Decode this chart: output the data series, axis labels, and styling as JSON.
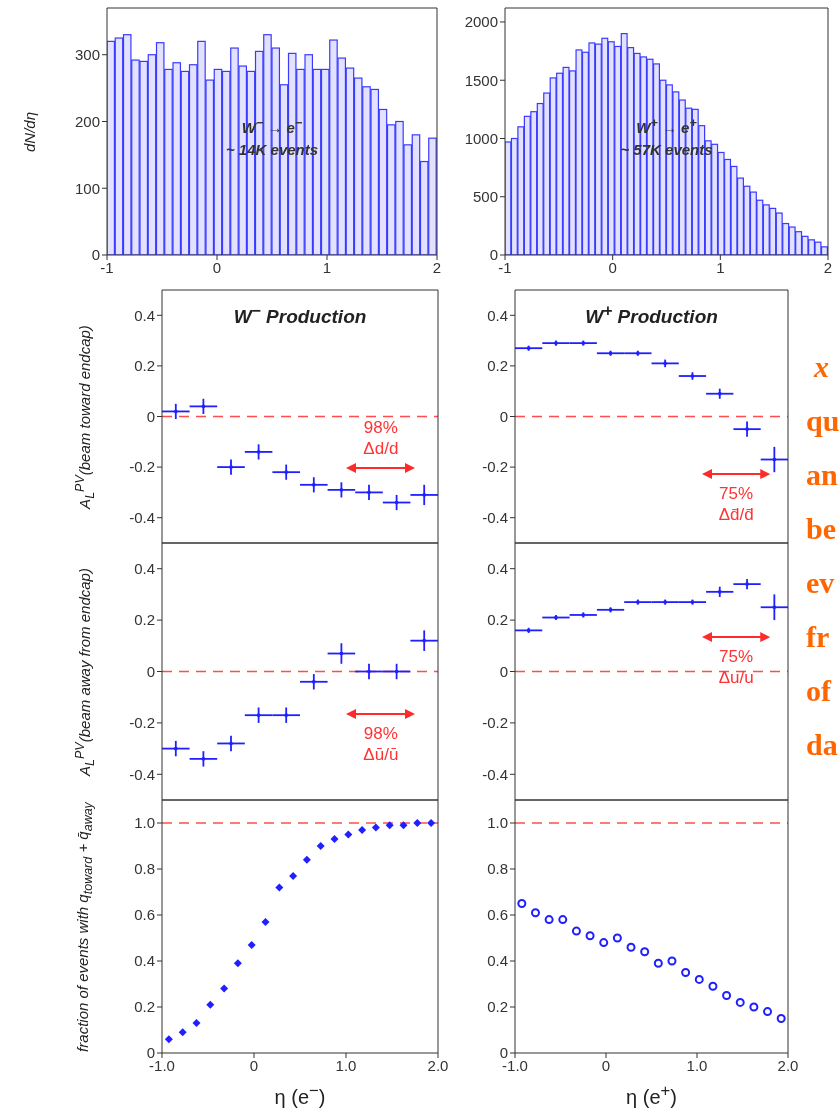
{
  "chart_data": [
    {
      "type": "histogram",
      "ylabel": "dN/dη",
      "annotations": [
        "W$^{−}$ → e$^{−}$",
        "~ 14K events"
      ],
      "color": "#3a3aff",
      "bins": [
        -1,
        -0.925,
        -0.85,
        -0.775,
        -0.7,
        -0.625,
        -0.55,
        -0.475,
        -0.4,
        -0.325,
        -0.25,
        -0.175,
        -0.1,
        -0.025,
        0.05,
        0.125,
        0.2,
        0.275,
        0.35,
        0.425,
        0.5,
        0.575,
        0.65,
        0.725,
        0.8,
        0.875,
        0.95,
        1.025,
        1.1,
        1.175,
        1.25,
        1.325,
        1.4,
        1.475,
        1.55,
        1.625,
        1.7,
        1.775,
        1.85,
        1.925,
        2
      ],
      "values": [
        320,
        325,
        330,
        292,
        290,
        300,
        318,
        278,
        288,
        275,
        285,
        320,
        262,
        278,
        275,
        310,
        283,
        275,
        305,
        330,
        310,
        255,
        302,
        278,
        300,
        278,
        278,
        322,
        295,
        280,
        265,
        252,
        248,
        218,
        195,
        200,
        165,
        180,
        140,
        175
      ],
      "xlim": [
        -1,
        2
      ],
      "xticks": [
        -1,
        0,
        1,
        2
      ],
      "ylim": [
        0,
        370
      ],
      "yticks": [
        0,
        100,
        200,
        300
      ]
    },
    {
      "type": "histogram",
      "annotations": [
        "W$^{+}$ → e$^{+}$",
        "~ 57K events"
      ],
      "color": "#3a3aff",
      "bins": [
        -1,
        -0.94,
        -0.88,
        -0.82,
        -0.76,
        -0.7,
        -0.64,
        -0.58,
        -0.52,
        -0.46,
        -0.4,
        -0.34,
        -0.28,
        -0.22,
        -0.16,
        -0.1,
        -0.04,
        0.02,
        0.08,
        0.14,
        0.2,
        0.26,
        0.32,
        0.38,
        0.44,
        0.5,
        0.56,
        0.62,
        0.68,
        0.74,
        0.8,
        0.86,
        0.92,
        0.98,
        1.04,
        1.1,
        1.16,
        1.22,
        1.28,
        1.34,
        1.4,
        1.46,
        1.52,
        1.58,
        1.64,
        1.7,
        1.76,
        1.82,
        1.88,
        1.94,
        2
      ],
      "values": [
        970,
        1000,
        1100,
        1190,
        1230,
        1300,
        1390,
        1520,
        1560,
        1610,
        1580,
        1760,
        1740,
        1820,
        1810,
        1860,
        1830,
        1790,
        1900,
        1780,
        1730,
        1700,
        1680,
        1640,
        1500,
        1460,
        1400,
        1330,
        1260,
        1250,
        1110,
        980,
        950,
        880,
        820,
        760,
        660,
        590,
        540,
        470,
        430,
        400,
        360,
        270,
        240,
        200,
        160,
        130,
        110,
        70
      ],
      "xlim": [
        -1,
        2
      ],
      "xticks": [
        -1,
        0,
        1,
        2
      ],
      "ylim": [
        0,
        2120
      ],
      "yticks": [
        0,
        500,
        1000,
        1500,
        2000
      ]
    },
    {
      "type": "scatter",
      "marker": "square",
      "title": "W$^{−}$ Production",
      "ylabel": "A$_{L}$$^{PV}$(beam toward endcap)",
      "color": "#1f1fff",
      "x": [
        -0.85,
        -0.55,
        -0.25,
        0.05,
        0.35,
        0.65,
        0.95,
        1.25,
        1.55,
        1.85
      ],
      "values": [
        0.02,
        0.04,
        -0.2,
        -0.14,
        -0.22,
        -0.27,
        -0.29,
        -0.3,
        -0.34,
        -0.31
      ],
      "errors": [
        0.03,
        0.03,
        0.03,
        0.03,
        0.03,
        0.03,
        0.03,
        0.03,
        0.03,
        0.04
      ],
      "xerrors": [
        0.15,
        0.15,
        0.15,
        0.15,
        0.15,
        0.15,
        0.15,
        0.15,
        0.15,
        0.15
      ],
      "annotations": [
        "98%",
        "Δd/d"
      ],
      "ref_lines": [
        {
          "axis": "y",
          "value": 0,
          "color": "#ff4d4d",
          "line_style": "dashed"
        }
      ],
      "xlim": [
        -1,
        2
      ],
      "xticks": [
        -1,
        0,
        1,
        2
      ],
      "ylim": [
        -0.5,
        0.5
      ],
      "yticks": [
        -0.4,
        -0.2,
        0,
        0.2,
        0.4
      ],
      "tick_labels": "y"
    },
    {
      "type": "scatter",
      "marker": "square",
      "title": "W$^{+}$ Production",
      "color": "#1f1fff",
      "x": [
        -0.85,
        -0.55,
        -0.25,
        0.05,
        0.35,
        0.65,
        0.95,
        1.25,
        1.55,
        1.85
      ],
      "values": [
        0.27,
        0.29,
        0.29,
        0.25,
        0.25,
        0.21,
        0.16,
        0.09,
        -0.05,
        -0.17
      ],
      "errors": [
        0.01,
        0.01,
        0.01,
        0.01,
        0.01,
        0.015,
        0.015,
        0.02,
        0.03,
        0.05
      ],
      "xerrors": [
        0.15,
        0.15,
        0.15,
        0.15,
        0.15,
        0.15,
        0.15,
        0.15,
        0.15,
        0.15
      ],
      "annotations": [
        "75%",
        "Δd̄/d̄"
      ],
      "ref_lines": [
        {
          "axis": "y",
          "value": 0,
          "color": "#ff4d4d",
          "line_style": "dashed"
        }
      ],
      "xlim": [
        -1,
        2
      ],
      "xticks": [
        -1,
        0,
        1,
        2
      ],
      "ylim": [
        -0.5,
        0.5
      ],
      "yticks": [
        -0.4,
        -0.2,
        0,
        0.2,
        0.4
      ],
      "tick_labels": "y"
    },
    {
      "type": "scatter",
      "marker": "square",
      "ylabel": "A$_{L}$$^{PV}$(beam away from endcap)",
      "color": "#1f1fff",
      "x": [
        -0.85,
        -0.55,
        -0.25,
        0.05,
        0.35,
        0.65,
        0.95,
        1.25,
        1.55,
        1.85
      ],
      "values": [
        -0.3,
        -0.34,
        -0.28,
        -0.17,
        -0.17,
        -0.04,
        0.07,
        0,
        0,
        0.12
      ],
      "errors": [
        0.03,
        0.03,
        0.03,
        0.03,
        0.03,
        0.03,
        0.04,
        0.03,
        0.03,
        0.04
      ],
      "xerrors": [
        0.15,
        0.15,
        0.15,
        0.15,
        0.15,
        0.15,
        0.15,
        0.15,
        0.15,
        0.15
      ],
      "annotations": [
        "98%",
        "Δū/ū"
      ],
      "ref_lines": [
        {
          "axis": "y",
          "value": 0,
          "color": "#ff4d4d",
          "line_style": "dashed"
        }
      ],
      "xlim": [
        -1,
        2
      ],
      "xticks": [
        -1,
        0,
        1,
        2
      ],
      "ylim": [
        -0.5,
        0.5
      ],
      "yticks": [
        -0.4,
        -0.2,
        0,
        0.2,
        0.4
      ],
      "tick_labels": "y"
    },
    {
      "type": "scatter",
      "marker": "square",
      "color": "#1f1fff",
      "x": [
        -0.85,
        -0.55,
        -0.25,
        0.05,
        0.35,
        0.65,
        0.95,
        1.25,
        1.55,
        1.85
      ],
      "values": [
        0.16,
        0.21,
        0.22,
        0.24,
        0.27,
        0.27,
        0.27,
        0.31,
        0.34,
        0.25
      ],
      "errors": [
        0.01,
        0.01,
        0.01,
        0.01,
        0.01,
        0.01,
        0.01,
        0.02,
        0.02,
        0.05
      ],
      "xerrors": [
        0.15,
        0.15,
        0.15,
        0.15,
        0.15,
        0.15,
        0.15,
        0.15,
        0.15,
        0.15
      ],
      "annotations": [
        "75%",
        "Δu/u"
      ],
      "ref_lines": [
        {
          "axis": "y",
          "value": 0,
          "color": "#ff4d4d",
          "line_style": "dashed"
        }
      ],
      "xlim": [
        -1,
        2
      ],
      "xticks": [
        -1,
        0,
        1,
        2
      ],
      "ylim": [
        -0.5,
        0.5
      ],
      "yticks": [
        -0.4,
        -0.2,
        0,
        0.2,
        0.4
      ],
      "tick_labels": "y"
    },
    {
      "type": "scatter",
      "marker": "diamond",
      "ylabel": "fraction of events with q$_{toward}$ + q̄$_{away}$",
      "xlabel": "η (e$^{−}$)",
      "color": "#1f1fff",
      "x": [
        -0.925,
        -0.775,
        -0.625,
        -0.475,
        -0.325,
        -0.175,
        -0.025,
        0.125,
        0.275,
        0.425,
        0.575,
        0.725,
        0.875,
        1.025,
        1.175,
        1.325,
        1.475,
        1.625,
        1.775,
        1.925
      ],
      "values": [
        0.06,
        0.09,
        0.13,
        0.21,
        0.28,
        0.39,
        0.47,
        0.57,
        0.72,
        0.77,
        0.84,
        0.9,
        0.93,
        0.95,
        0.97,
        0.98,
        0.99,
        0.99,
        1.0,
        1.0
      ],
      "ref_lines": [
        {
          "axis": "y",
          "value": 1,
          "color": "#ff4d4d",
          "line_style": "dashed"
        }
      ],
      "xlim": [
        -1,
        2
      ],
      "xticks": [
        {
          "value": -1,
          "label": "-1.0"
        },
        0,
        {
          "value": 1,
          "label": "1.0"
        },
        {
          "value": 2,
          "label": "2.0"
        }
      ],
      "ylim": [
        0,
        1.1
      ],
      "yticks": [
        0,
        0.2,
        0.4,
        0.6,
        0.8,
        {
          "value": 1,
          "label": "1.0"
        }
      ]
    },
    {
      "type": "scatter",
      "marker": "circle",
      "xlabel": "η (e$^{+}$)",
      "color": "#1f1fff",
      "x": [
        -0.925,
        -0.775,
        -0.625,
        -0.475,
        -0.325,
        -0.175,
        -0.025,
        0.125,
        0.275,
        0.425,
        0.575,
        0.725,
        0.875,
        1.025,
        1.175,
        1.325,
        1.475,
        1.625,
        1.775,
        1.925
      ],
      "values": [
        0.65,
        0.61,
        0.58,
        0.58,
        0.53,
        0.51,
        0.48,
        0.5,
        0.46,
        0.44,
        0.39,
        0.4,
        0.35,
        0.32,
        0.29,
        0.25,
        0.22,
        0.2,
        0.18,
        0.15
      ],
      "ref_lines": [
        {
          "axis": "y",
          "value": 1,
          "color": "#ff4d4d",
          "line_style": "dashed"
        }
      ],
      "xlim": [
        -1,
        2
      ],
      "xticks": [
        {
          "value": -1,
          "label": "-1.0"
        },
        0,
        {
          "value": 1,
          "label": "1.0"
        },
        {
          "value": 2,
          "label": "2.0"
        }
      ],
      "ylim": [
        0,
        1.1
      ],
      "yticks": [
        0,
        0.2,
        0.4,
        0.6,
        0.8,
        {
          "value": 1,
          "label": "1.0"
        }
      ]
    },
    {
      "type": "other",
      "annotations": [
        "x",
        "qu",
        "an",
        "be",
        "ev",
        "fr",
        "of",
        "da"
      ]
    }
  ]
}
